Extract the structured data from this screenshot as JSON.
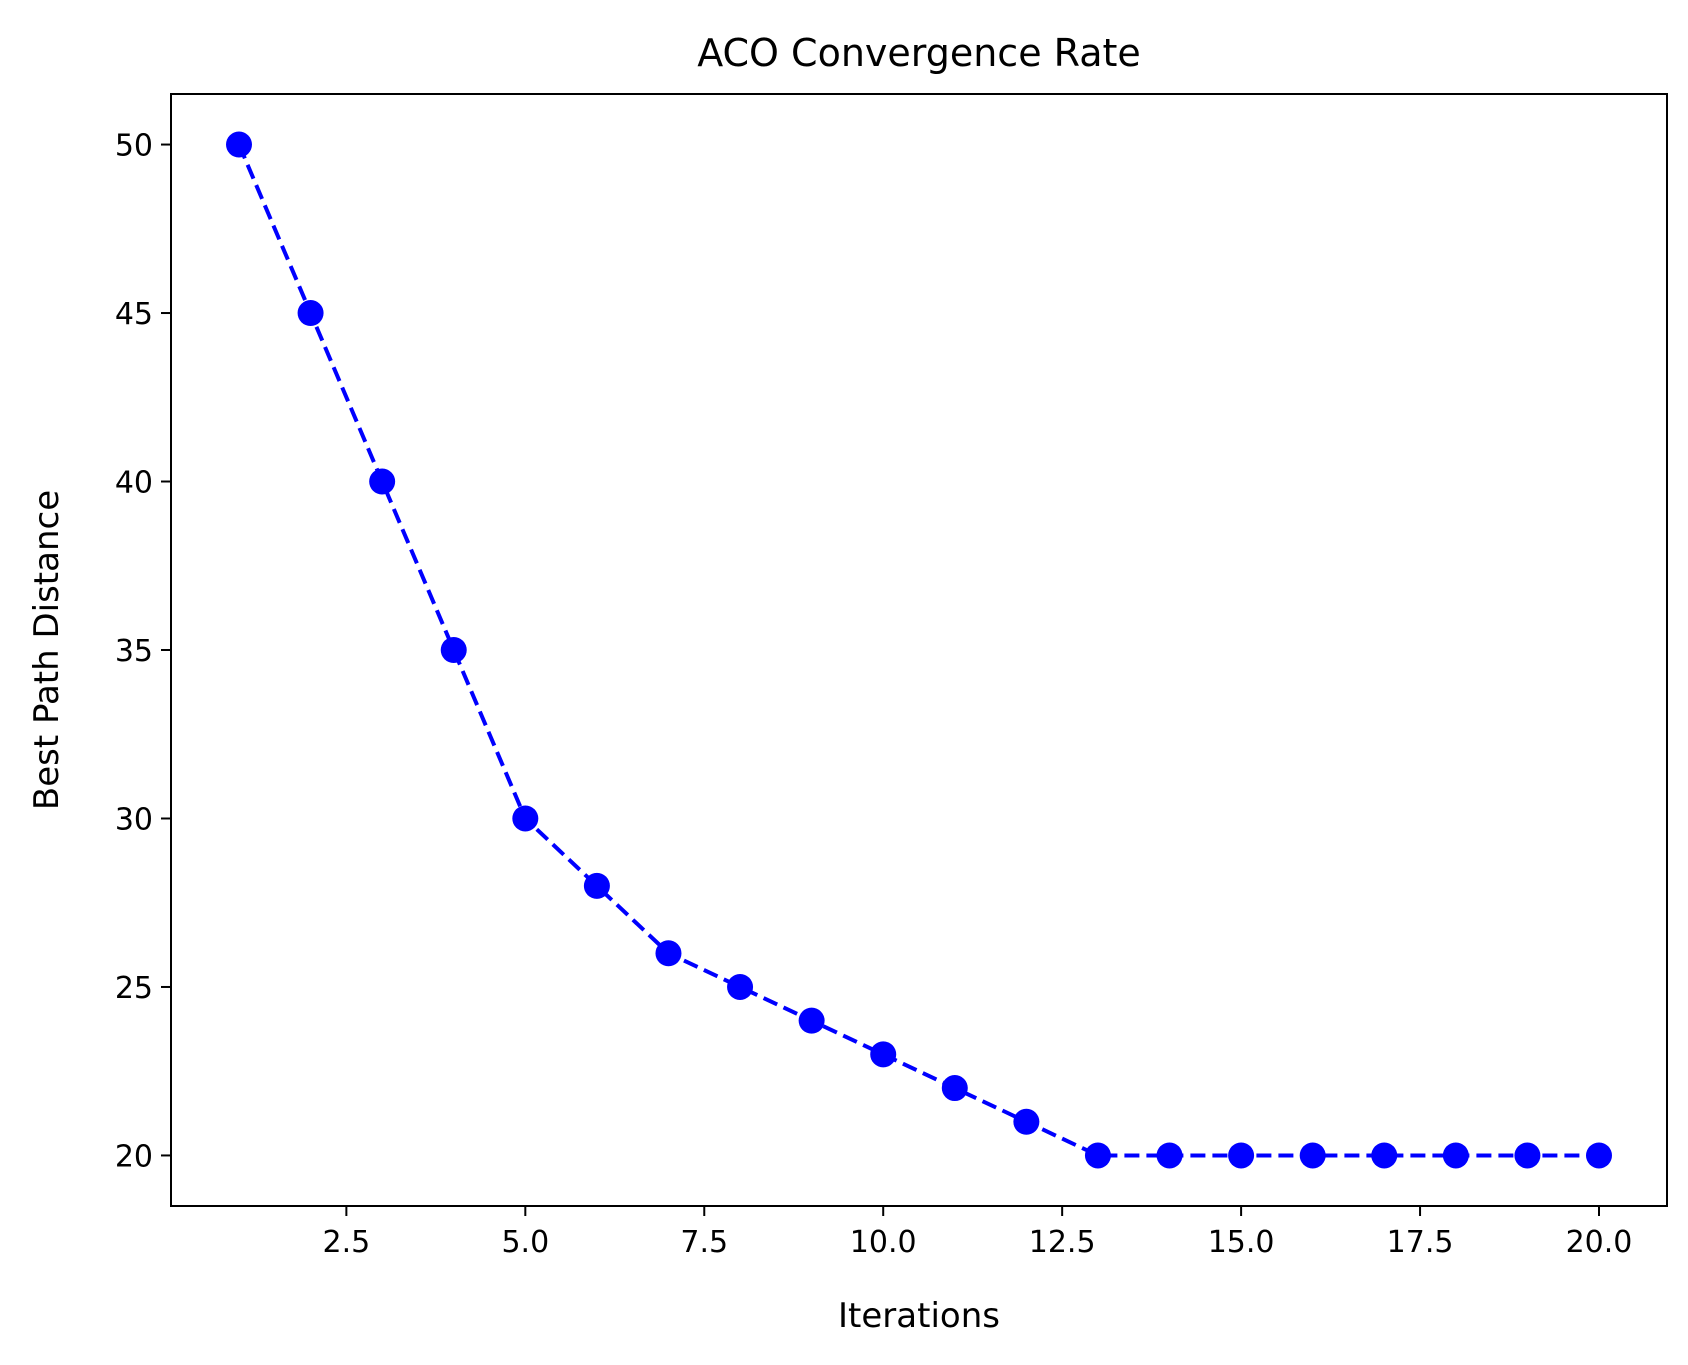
{
  "chart_data": {
    "type": "line",
    "title": "ACO Convergence Rate",
    "xlabel": "Iterations",
    "ylabel": "Best Path Distance",
    "xlim": [
      0.05,
      20.95
    ],
    "ylim": [
      18.5,
      51.5
    ],
    "xticks": [
      2.5,
      5.0,
      7.5,
      10.0,
      12.5,
      15.0,
      17.5,
      20.0
    ],
    "xtick_labels": [
      "2.5",
      "5.0",
      "7.5",
      "10.0",
      "12.5",
      "15.0",
      "17.5",
      "20.0"
    ],
    "yticks": [
      20,
      25,
      30,
      35,
      40,
      45,
      50
    ],
    "ytick_labels": [
      "20",
      "25",
      "30",
      "35",
      "40",
      "45",
      "50"
    ],
    "grid": false,
    "series": [
      {
        "color": "#0000ff",
        "line_style": "dashed",
        "marker": "circle",
        "x": [
          1,
          2,
          3,
          4,
          5,
          6,
          7,
          8,
          9,
          10,
          11,
          12,
          13,
          14,
          15,
          16,
          17,
          18,
          19,
          20
        ],
        "values": [
          50,
          45,
          40,
          35,
          30,
          28,
          26,
          25,
          24,
          23,
          22,
          21,
          20,
          20,
          20,
          20,
          20,
          20,
          20,
          20
        ]
      }
    ]
  }
}
